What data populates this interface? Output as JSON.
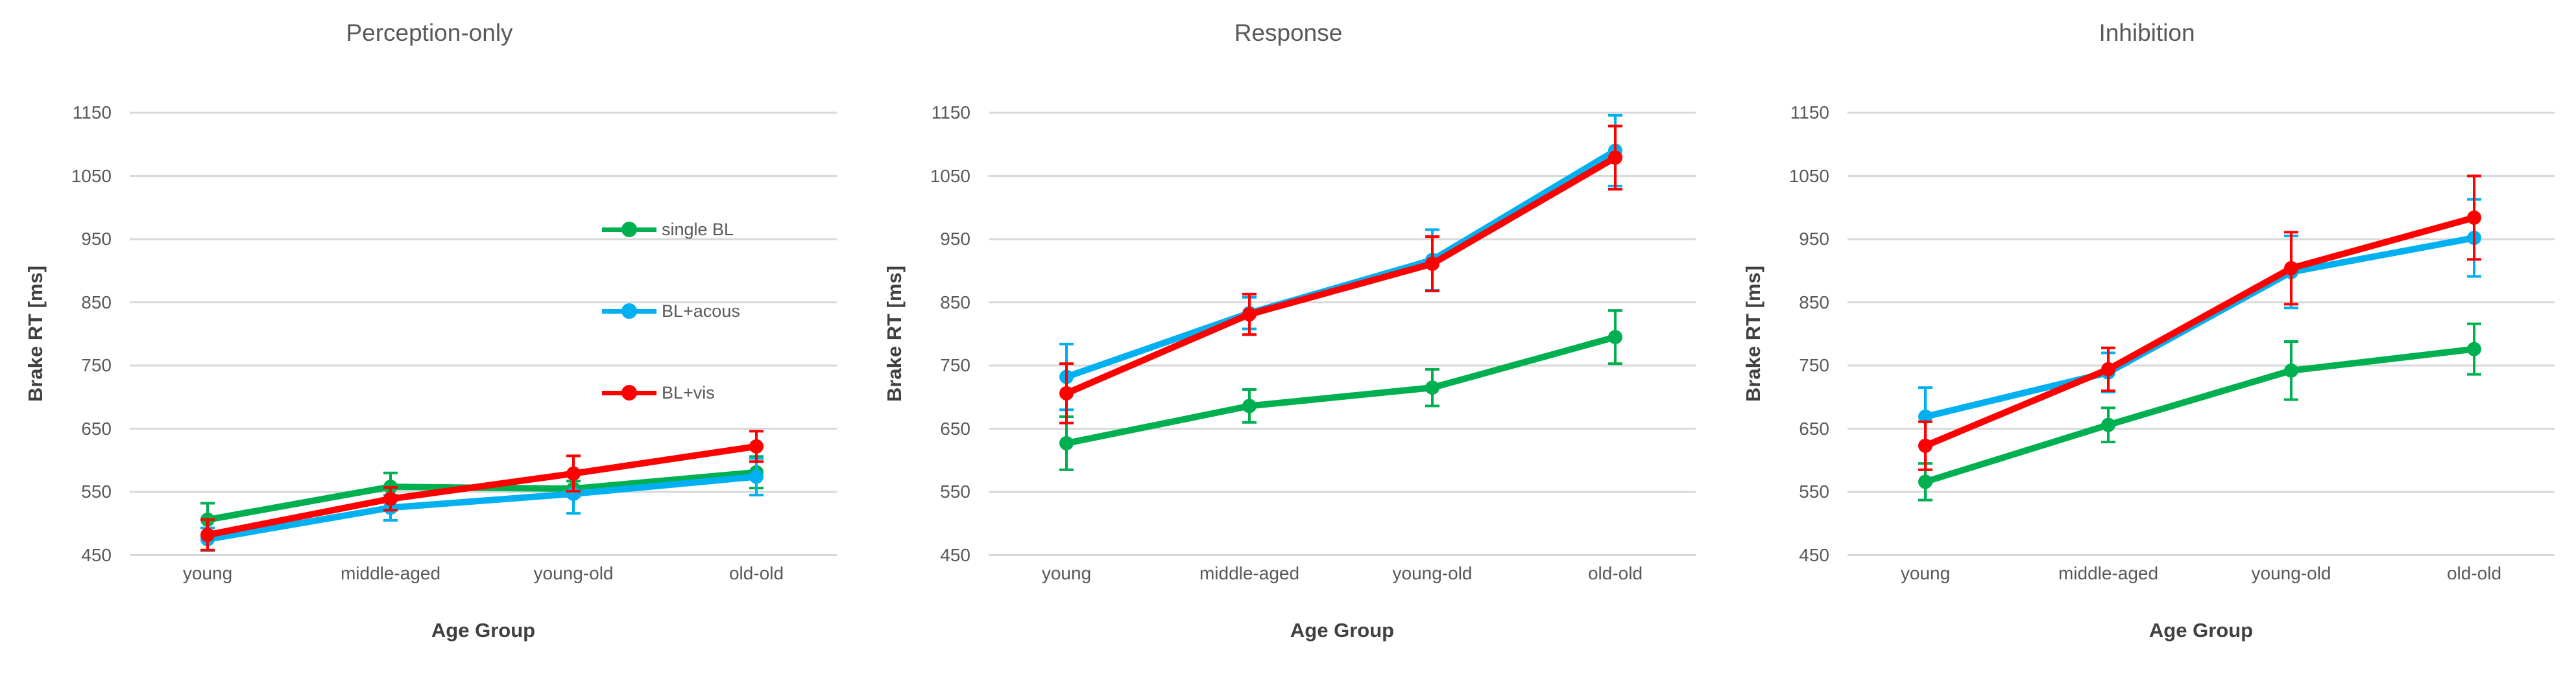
{
  "figure": {
    "bg_color": "#FFFFFF",
    "grid_color": "#D9D9D9",
    "title_color": "#595959",
    "axis_title_color": "#404040",
    "tick_label_color": "#595959"
  },
  "chart_data": [
    {
      "type": "line",
      "title": "Perception-only",
      "xlabel": "Age Group",
      "ylabel": "Brake RT [ms]",
      "categories": [
        "young",
        "middle-aged",
        "young-old",
        "old-old"
      ],
      "ylim": [
        450,
        1150
      ],
      "yticks": [
        1150,
        1050,
        950,
        850,
        750,
        650,
        550,
        450
      ],
      "grid": true,
      "show_legend": true,
      "legend_position": "inside-right",
      "series": [
        {
          "name": "single BL",
          "color": "#00B050",
          "values": [
            506,
            558,
            555,
            581
          ],
          "errors": [
            26,
            22,
            12,
            25
          ]
        },
        {
          "name": "BL+acous",
          "color": "#00B0F0",
          "values": [
            475,
            525,
            547,
            574
          ],
          "errors": [
            18,
            20,
            31,
            29
          ]
        },
        {
          "name": "BL+vis",
          "color": "#FF0000",
          "values": [
            482,
            539,
            579,
            622
          ],
          "errors": [
            24,
            18,
            28,
            24
          ]
        }
      ]
    },
    {
      "type": "line",
      "title": "Response",
      "xlabel": "Age Group",
      "ylabel": "Brake RT [ms]",
      "categories": [
        "young",
        "middle-aged",
        "young-old",
        "old-old"
      ],
      "ylim": [
        450,
        1150
      ],
      "yticks": [
        1150,
        1050,
        950,
        850,
        750,
        650,
        550,
        450
      ],
      "grid": true,
      "show_legend": false,
      "series": [
        {
          "name": "single BL",
          "color": "#00B050",
          "values": [
            627,
            686,
            715,
            795
          ],
          "errors": [
            42,
            26,
            29,
            42
          ]
        },
        {
          "name": "BL+acous",
          "color": "#00B0F0",
          "values": [
            732,
            833,
            917,
            1090
          ],
          "errors": [
            52,
            25,
            48,
            56
          ]
        },
        {
          "name": "BL+vis",
          "color": "#FF0000",
          "values": [
            706,
            831,
            911,
            1079
          ],
          "errors": [
            47,
            32,
            43,
            50
          ]
        }
      ]
    },
    {
      "type": "line",
      "title": "Inhibition",
      "xlabel": "Age Group",
      "ylabel": "Brake RT [ms]",
      "categories": [
        "young",
        "middle-aged",
        "young-old",
        "old-old"
      ],
      "ylim": [
        450,
        1150
      ],
      "yticks": [
        1150,
        1050,
        950,
        850,
        750,
        650,
        550,
        450
      ],
      "grid": true,
      "show_legend": false,
      "series": [
        {
          "name": "single BL",
          "color": "#00B050",
          "values": [
            566,
            656,
            742,
            776
          ],
          "errors": [
            29,
            27,
            46,
            40
          ]
        },
        {
          "name": "BL+acous",
          "color": "#00B0F0",
          "values": [
            669,
            739,
            898,
            952
          ],
          "errors": [
            46,
            31,
            57,
            61
          ]
        },
        {
          "name": "BL+vis",
          "color": "#FF0000",
          "values": [
            623,
            744,
            904,
            984
          ],
          "errors": [
            38,
            34,
            57,
            66
          ]
        }
      ]
    }
  ]
}
